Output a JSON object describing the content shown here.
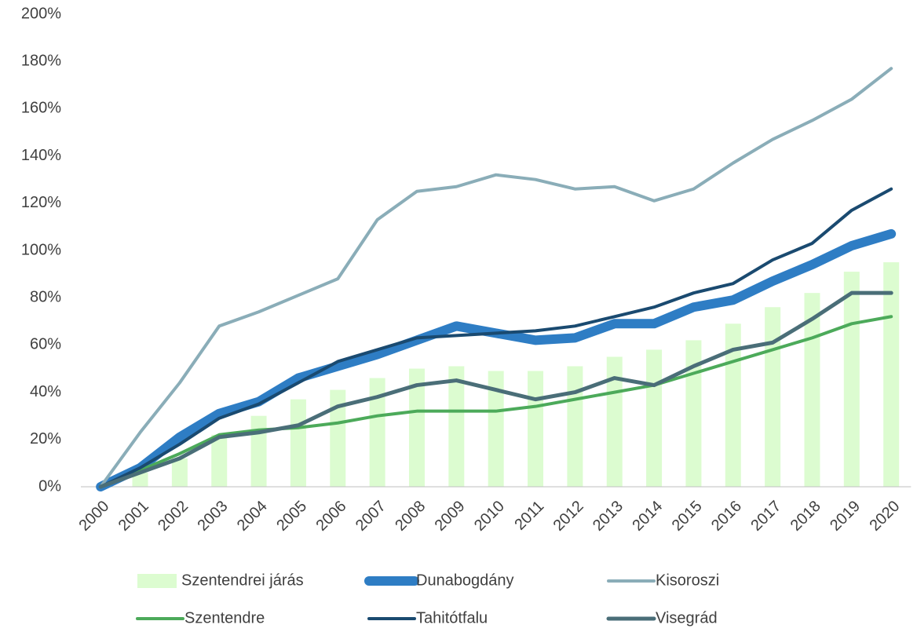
{
  "chart_data": {
    "type": "combo",
    "categories": [
      "2000",
      "2001",
      "2002",
      "2003",
      "2004",
      "2005",
      "2006",
      "2007",
      "2008",
      "2009",
      "2010",
      "2011",
      "2012",
      "2013",
      "2014",
      "2015",
      "2016",
      "2017",
      "2018",
      "2019",
      "2020"
    ],
    "ylim": [
      0,
      200
    ],
    "yticks": [
      {
        "value": 0,
        "label": "0%"
      },
      {
        "value": 20,
        "label": "20%"
      },
      {
        "value": 40,
        "label": "40%"
      },
      {
        "value": 60,
        "label": "60%"
      },
      {
        "value": 80,
        "label": "80%"
      },
      {
        "value": 100,
        "label": "100%"
      },
      {
        "value": 120,
        "label": "120%"
      },
      {
        "value": 140,
        "label": "140%"
      },
      {
        "value": 160,
        "label": "160%"
      },
      {
        "value": 180,
        "label": "180%"
      },
      {
        "value": 200,
        "label": "200%"
      }
    ],
    "grid": false,
    "legend": "bottom",
    "series": [
      {
        "name": "Szentendrei járás",
        "type": "bar",
        "color": "#dcfcd0",
        "values": [
          0,
          6,
          12,
          22,
          30,
          37,
          41,
          46,
          50,
          51,
          49,
          49,
          51,
          55,
          58,
          62,
          69,
          76,
          82,
          91,
          95
        ]
      },
      {
        "name": "Dunabogdány",
        "type": "line",
        "color": "#2e7dc4",
        "width": 12,
        "values": [
          0,
          8,
          21,
          31,
          36,
          46,
          51,
          56,
          62,
          68,
          65,
          62,
          63,
          69,
          69,
          76,
          79,
          87,
          94,
          102,
          107
        ]
      },
      {
        "name": "Kisoroszi",
        "type": "line",
        "color": "#8aadb8",
        "width": 4,
        "values": [
          0,
          23,
          44,
          68,
          74,
          81,
          88,
          113,
          125,
          127,
          132,
          130,
          126,
          127,
          121,
          126,
          137,
          147,
          155,
          164,
          177
        ]
      },
      {
        "name": "Szentendre",
        "type": "line",
        "color": "#4caa5a",
        "width": 4,
        "values": [
          0,
          7,
          14,
          22,
          24,
          25,
          27,
          30,
          32,
          32,
          32,
          34,
          37,
          40,
          43,
          48,
          53,
          58,
          63,
          69,
          72
        ]
      },
      {
        "name": "Tahitótfalu",
        "type": "line",
        "color": "#1a4a70",
        "width": 4,
        "values": [
          0,
          8,
          18,
          29,
          35,
          44,
          53,
          58,
          63,
          64,
          65,
          66,
          68,
          72,
          76,
          82,
          86,
          96,
          103,
          117,
          126
        ]
      },
      {
        "name": "Visegrád",
        "type": "line",
        "color": "#4a6e78",
        "width": 5,
        "values": [
          0,
          6,
          12,
          21,
          23,
          26,
          34,
          38,
          43,
          45,
          41,
          37,
          40,
          46,
          43,
          51,
          58,
          61,
          71,
          82,
          82
        ]
      }
    ]
  }
}
